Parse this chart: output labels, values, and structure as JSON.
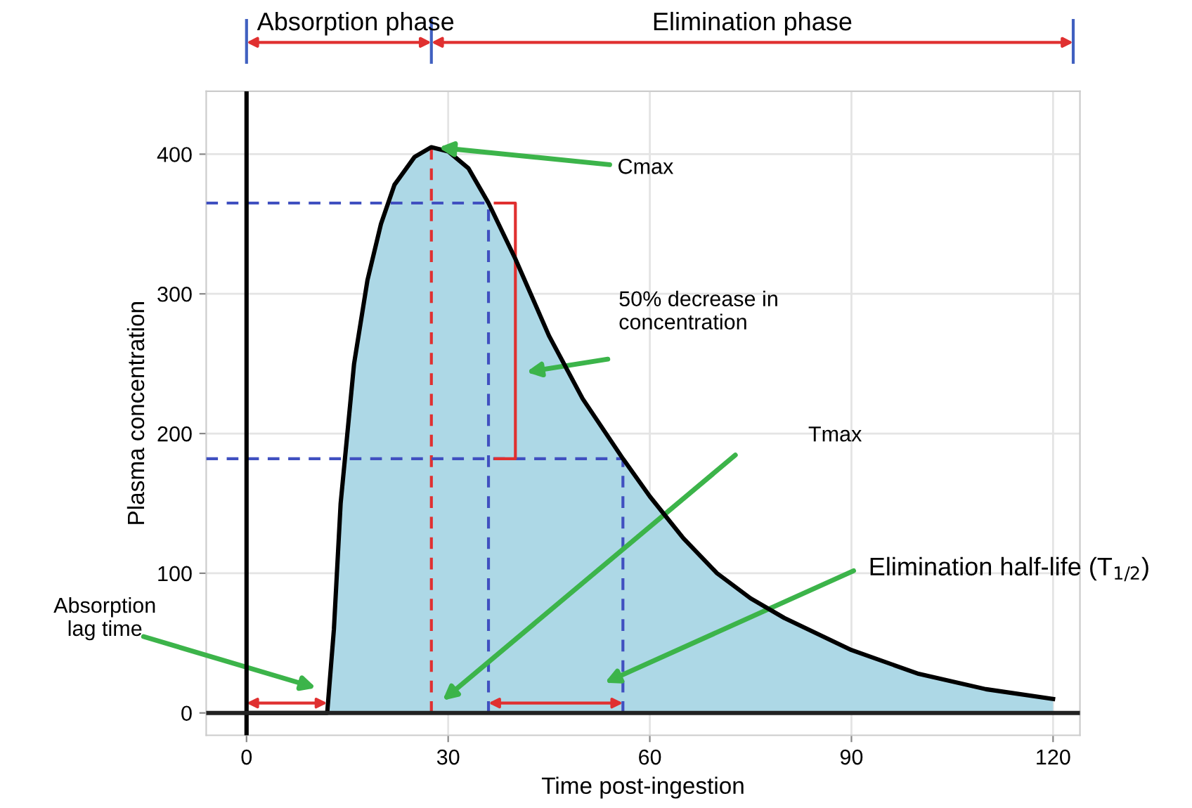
{
  "chart_data": {
    "type": "area",
    "xlabel": "Time post-ingestion",
    "ylabel": "Plasma concentration",
    "xlim": [
      -6,
      124
    ],
    "ylim": [
      -16,
      445
    ],
    "xticks": [
      0,
      30,
      60,
      90,
      120
    ],
    "yticks": [
      0,
      100,
      200,
      300,
      400
    ],
    "grid": true,
    "series": [
      {
        "color": "#add8e6",
        "x": [
          0,
          12,
          13,
          14,
          16,
          18,
          20,
          22,
          25,
          27.5,
          30,
          33,
          36,
          40,
          45,
          50,
          56,
          60,
          65,
          70,
          75,
          80,
          90,
          100,
          110,
          120
        ],
        "values": [
          0,
          0,
          60,
          150,
          250,
          310,
          350,
          378,
          398,
          405,
          402,
          390,
          365,
          325,
          270,
          225,
          182,
          155,
          125,
          100,
          82,
          68,
          45,
          28,
          17,
          10
        ]
      },
      {
        "type": "line",
        "color": "#e03030",
        "line_style": "dashed",
        "x": [
          27.5,
          27.5
        ],
        "values": [
          0,
          405
        ]
      },
      {
        "type": "line",
        "color": "#4050c0",
        "line_style": "dashed",
        "x": [
          -6,
          36
        ],
        "values": [
          365,
          365
        ]
      },
      {
        "type": "line",
        "color": "#4050c0",
        "line_style": "dashed",
        "x": [
          -6,
          56
        ],
        "values": [
          182,
          182
        ]
      },
      {
        "type": "line",
        "color": "#4050c0",
        "line_style": "dashed",
        "x": [
          36,
          36
        ],
        "values": [
          0,
          365
        ]
      },
      {
        "type": "line",
        "color": "#4050c0",
        "line_style": "dashed",
        "x": [
          56,
          56
        ],
        "values": [
          0,
          182
        ]
      },
      {
        "type": "line",
        "color": "#e03030",
        "line_style": "solid",
        "x": [
          37,
          40,
          40,
          37
        ],
        "values": [
          365,
          365,
          182,
          182
        ]
      }
    ],
    "annotations": [
      {
        "text": "Cmax",
        "x": 28,
        "y": 405
      },
      "50% decrease in\nconcentration",
      "Tmax",
      "Elimination half-life (T$_{1/2}$)",
      "Absorption\nlag time",
      "Absorption phase",
      "Elimination phase"
    ]
  }
}
